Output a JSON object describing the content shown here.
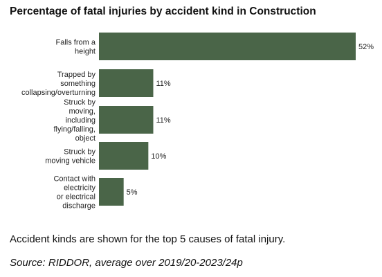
{
  "chart_data": {
    "type": "bar",
    "orientation": "horizontal",
    "title": "Percentage of fatal injuries by accident kind in Construction",
    "categories": [
      [
        "Falls from a",
        "height"
      ],
      [
        "Trapped by",
        "something",
        "collapsing/overturning"
      ],
      [
        "Struck by",
        "moving,",
        "including",
        "flying/falling,",
        "object"
      ],
      [
        "Struck by",
        "moving vehicle"
      ],
      [
        "Contact with",
        "electricity",
        "or electrical",
        "discharge"
      ]
    ],
    "values": [
      52,
      11,
      11,
      10,
      5
    ],
    "value_labels": [
      "52%",
      "11%",
      "11%",
      "10%",
      "5%"
    ],
    "xlim": [
      0,
      52
    ],
    "unit": "%",
    "bar_color": "#4a6548",
    "grid": false,
    "legend": "none"
  },
  "footer": {
    "note": "Accident kinds are shown for the top 5 causes of fatal injury.",
    "source": "Source: RIDDOR, average over 2019/20-2023/24p"
  }
}
